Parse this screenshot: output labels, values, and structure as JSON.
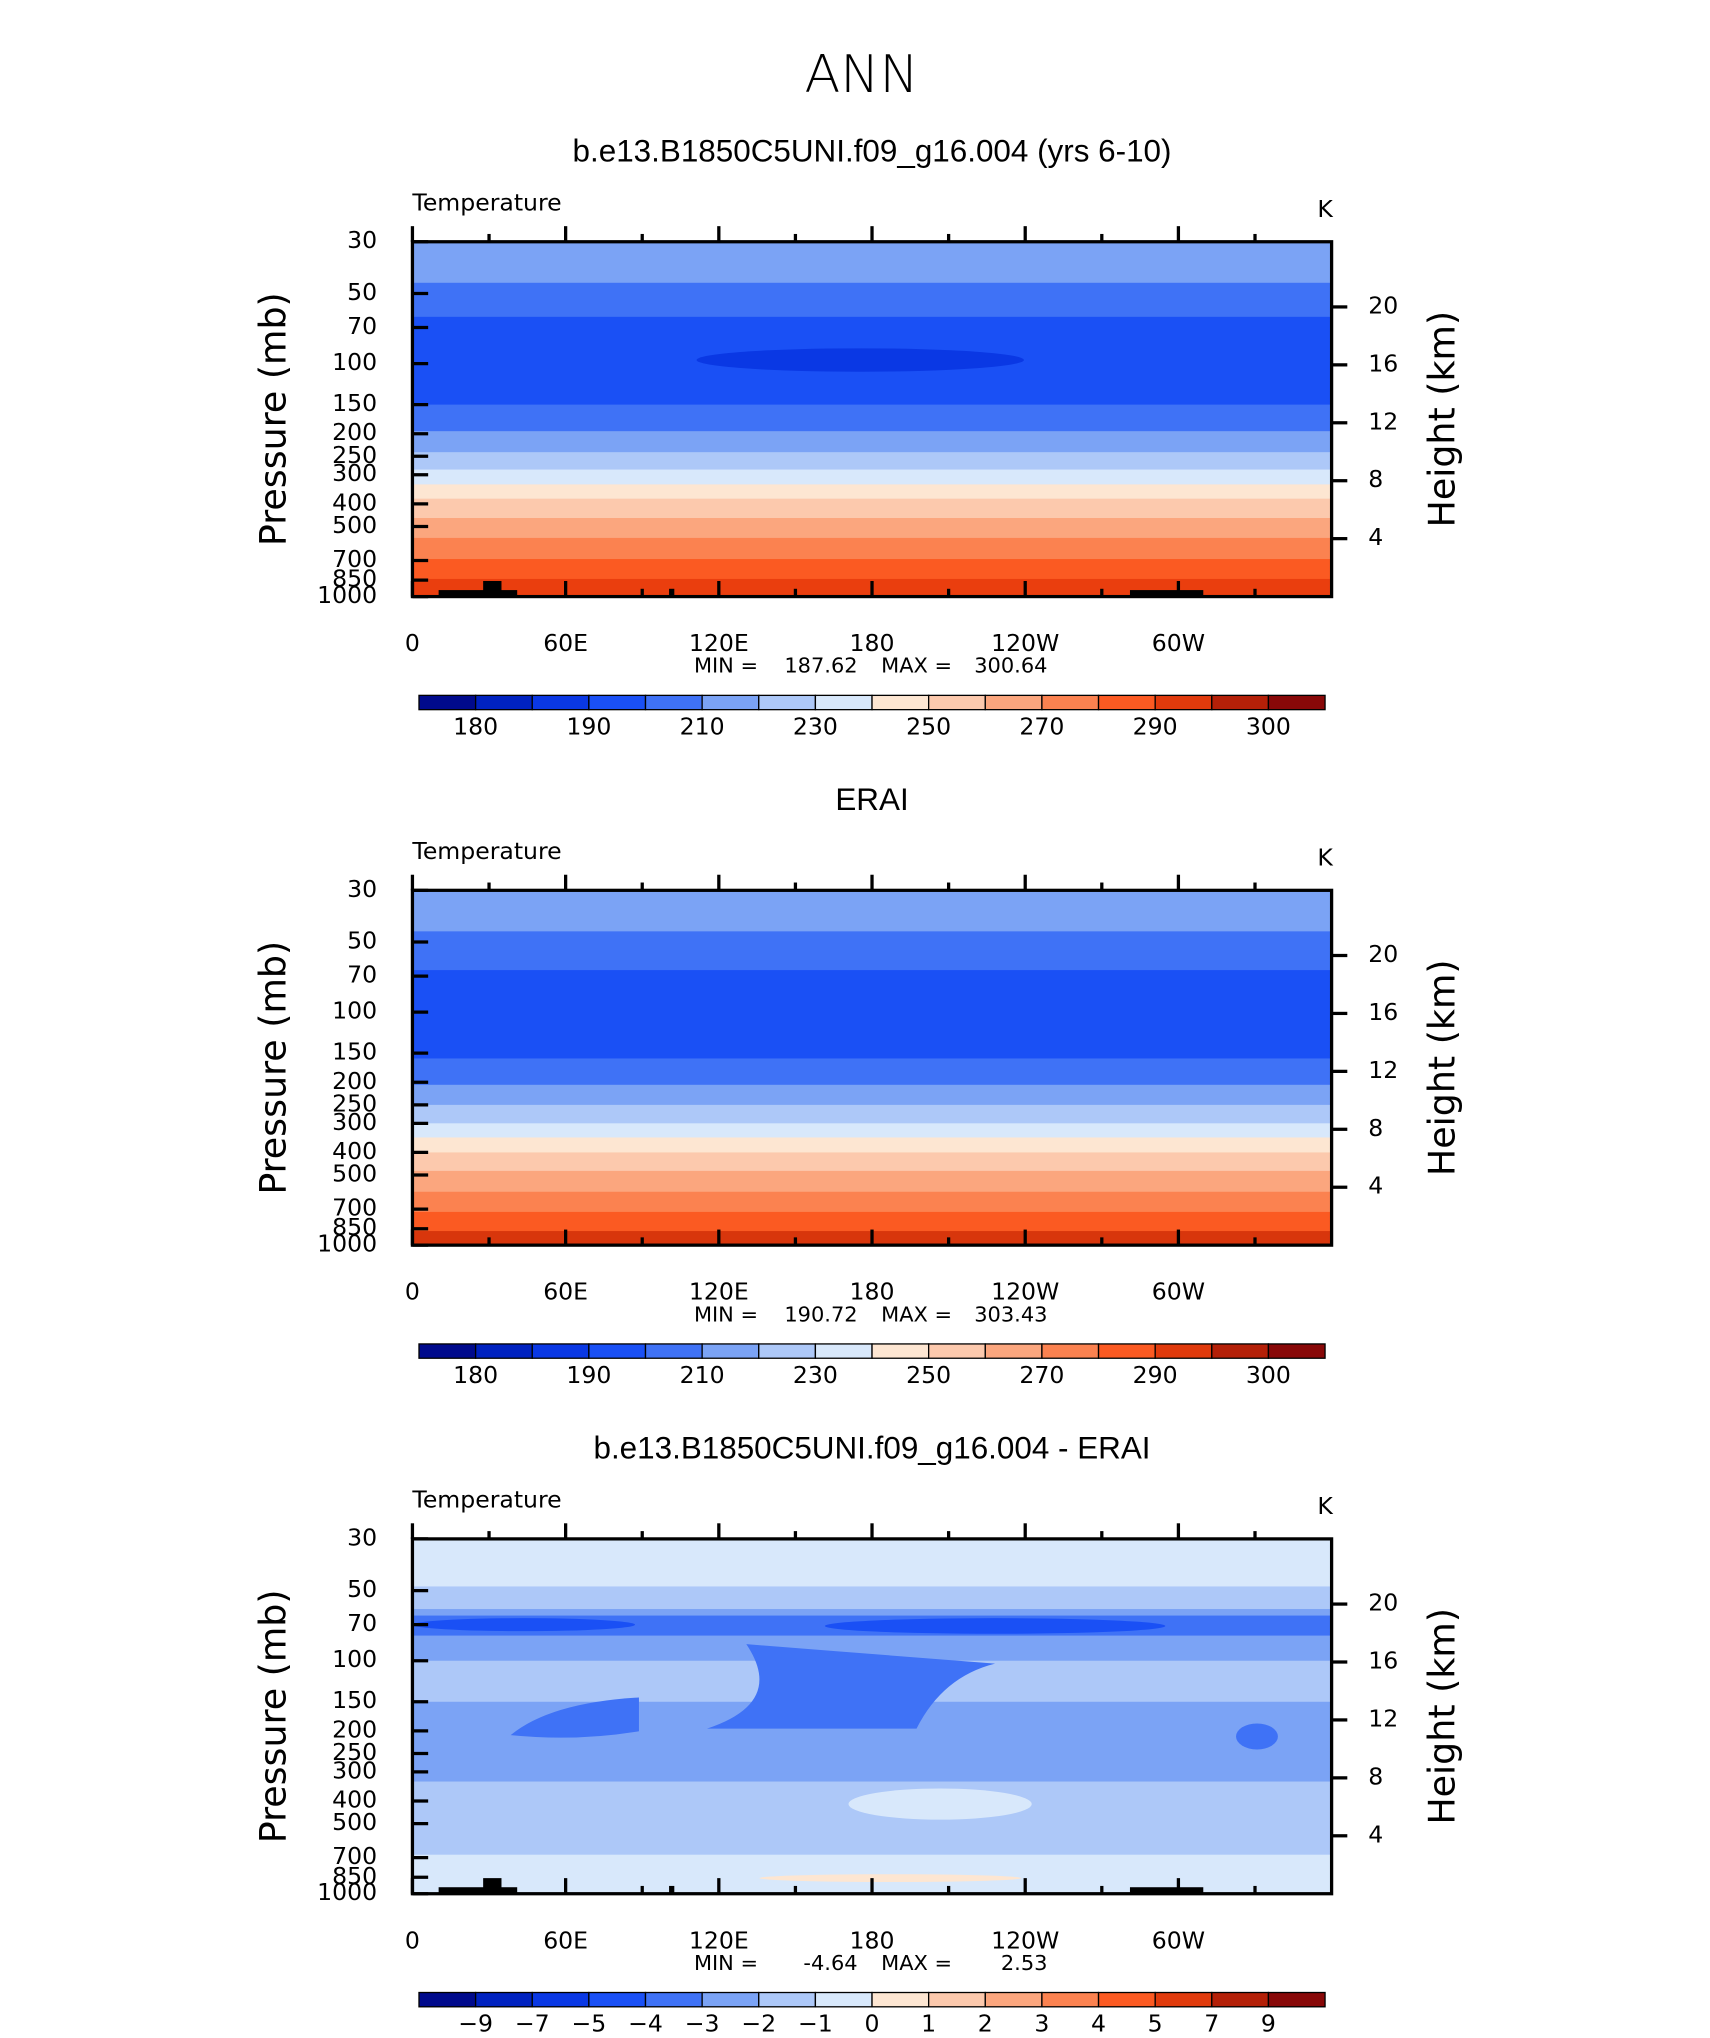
{
  "title": "ANN",
  "chart_data": [
    {
      "type": "contour",
      "title": "b.e13.B1850C5UNI.f09_g16.004 (yrs 6-10)",
      "left_label": "Temperature",
      "units": "K",
      "ylabel": "Pressure (mb)",
      "y2label": "Height (km)",
      "ylog": true,
      "ylim": [
        30,
        1000
      ],
      "yticks": [
        30,
        50,
        70,
        100,
        150,
        200,
        250,
        300,
        400,
        500,
        700,
        850,
        1000
      ],
      "y2lim": [
        0,
        24.5
      ],
      "y2ticks": [
        4,
        8,
        12,
        16,
        20
      ],
      "xlim": [
        0,
        360
      ],
      "xticks": [
        0,
        {
          "value": 60,
          "label": "60E"
        },
        {
          "value": 120,
          "label": "120E"
        },
        180,
        {
          "value": 240,
          "label": "120W"
        },
        {
          "value": 300,
          "label": "60W"
        }
      ],
      "xminorticks": [
        30,
        90,
        150,
        210,
        270,
        330
      ],
      "min_label": "MIN =",
      "min": 187.62,
      "max_label": "MAX =",
      "max": 300.64,
      "bands": [
        {
          "p": [
            30,
            45
          ],
          "color": "#7ba3f5"
        },
        {
          "p": [
            45,
            63
          ],
          "color": "#3f72f6"
        },
        {
          "p": [
            63,
            150
          ],
          "color": "#1a50f5"
        },
        {
          "p": [
            150,
            195
          ],
          "color": "#3f72f6"
        },
        {
          "p": [
            195,
            240
          ],
          "color": "#7ba3f5"
        },
        {
          "p": [
            240,
            285
          ],
          "color": "#adc8f8"
        },
        {
          "p": [
            285,
            330
          ],
          "color": "#d8e8fb"
        },
        {
          "p": [
            330,
            380
          ],
          "color": "#fde6d2"
        },
        {
          "p": [
            380,
            460
          ],
          "color": "#fcc9ad"
        },
        {
          "p": [
            460,
            560
          ],
          "color": "#fba67e"
        },
        {
          "p": [
            560,
            690
          ],
          "color": "#fb8250"
        },
        {
          "p": [
            690,
            840
          ],
          "color": "#fb5a22"
        },
        {
          "p": [
            840,
            1000
          ],
          "color": "#ea3e0e"
        }
      ],
      "colorbar": {
        "colors": [
          "#000a8c",
          "#0022c0",
          "#0a38e4",
          "#1a50f5",
          "#3f72f6",
          "#7ba3f5",
          "#adc8f8",
          "#d8e8fb",
          "#fde6d2",
          "#fcc9ad",
          "#fba67e",
          "#fb8250",
          "#fb5a22",
          "#e03a0c",
          "#b42008",
          "#880808"
        ],
        "labels": [
          180,
          190,
          210,
          230,
          250,
          270,
          290,
          300
        ]
      }
    },
    {
      "type": "contour",
      "title": "ERAI",
      "left_label": "Temperature",
      "units": "K",
      "ylabel": "Pressure (mb)",
      "y2label": "Height (km)",
      "ylog": true,
      "ylim": [
        30,
        1000
      ],
      "yticks": [
        30,
        50,
        70,
        100,
        150,
        200,
        250,
        300,
        400,
        500,
        700,
        850,
        1000
      ],
      "y2lim": [
        0,
        24.5
      ],
      "y2ticks": [
        4,
        8,
        12,
        16,
        20
      ],
      "xlim": [
        0,
        360
      ],
      "xticks": [
        0,
        {
          "value": 60,
          "label": "60E"
        },
        {
          "value": 120,
          "label": "120E"
        },
        180,
        {
          "value": 240,
          "label": "120W"
        },
        {
          "value": 300,
          "label": "60W"
        }
      ],
      "xminorticks": [
        30,
        90,
        150,
        210,
        270,
        330
      ],
      "min_label": "MIN =",
      "min": 190.72,
      "max_label": "MAX =",
      "max": 303.43,
      "bands": [
        {
          "p": [
            30,
            45
          ],
          "color": "#7ba3f5"
        },
        {
          "p": [
            45,
            66
          ],
          "color": "#3f72f6"
        },
        {
          "p": [
            66,
            158
          ],
          "color": "#1a50f5"
        },
        {
          "p": [
            158,
            205
          ],
          "color": "#3f72f6"
        },
        {
          "p": [
            205,
            250
          ],
          "color": "#7ba3f5"
        },
        {
          "p": [
            250,
            300
          ],
          "color": "#adc8f8"
        },
        {
          "p": [
            300,
            345
          ],
          "color": "#d8e8fb"
        },
        {
          "p": [
            345,
            400
          ],
          "color": "#fde6d2"
        },
        {
          "p": [
            400,
            480
          ],
          "color": "#fcc9ad"
        },
        {
          "p": [
            480,
            590
          ],
          "color": "#fba67e"
        },
        {
          "p": [
            590,
            720
          ],
          "color": "#fb8250"
        },
        {
          "p": [
            720,
            870
          ],
          "color": "#fb5a22"
        },
        {
          "p": [
            870,
            1000
          ],
          "color": "#d8360c"
        }
      ],
      "colorbar": {
        "colors": [
          "#000a8c",
          "#0022c0",
          "#0a38e4",
          "#1a50f5",
          "#3f72f6",
          "#7ba3f5",
          "#adc8f8",
          "#d8e8fb",
          "#fde6d2",
          "#fcc9ad",
          "#fba67e",
          "#fb8250",
          "#fb5a22",
          "#e03a0c",
          "#b42008",
          "#880808"
        ],
        "labels": [
          180,
          190,
          210,
          230,
          250,
          270,
          290,
          300
        ]
      }
    },
    {
      "type": "contour",
      "title": "b.e13.B1850C5UNI.f09_g16.004 - ERAI",
      "left_label": "Temperature",
      "units": "K",
      "ylabel": "Pressure (mb)",
      "y2label": "Height (km)",
      "ylog": true,
      "ylim": [
        30,
        1000
      ],
      "yticks": [
        30,
        50,
        70,
        100,
        150,
        200,
        250,
        300,
        400,
        500,
        700,
        850,
        1000
      ],
      "y2lim": [
        0,
        24.5
      ],
      "y2ticks": [
        4,
        8,
        12,
        16,
        20
      ],
      "xlim": [
        0,
        360
      ],
      "xticks": [
        0,
        {
          "value": 60,
          "label": "60E"
        },
        {
          "value": 120,
          "label": "120E"
        },
        180,
        {
          "value": 240,
          "label": "120W"
        },
        {
          "value": 300,
          "label": "60W"
        }
      ],
      "xminorticks": [
        30,
        90,
        150,
        210,
        270,
        330
      ],
      "min_label": "MIN =",
      "min": -4.64,
      "max_label": "MAX =",
      "max": 2.53,
      "bands": [
        {
          "p": [
            30,
            48
          ],
          "color": "#d8e8fb"
        },
        {
          "p": [
            48,
            60
          ],
          "color": "#adc8f8"
        },
        {
          "p": [
            60,
            64
          ],
          "color": "#7ba3f5"
        },
        {
          "p": [
            64,
            78
          ],
          "color": "#3f72f6"
        },
        {
          "p": [
            78,
            100
          ],
          "color": "#7ba3f5"
        },
        {
          "p": [
            100,
            150
          ],
          "color": "#adc8f8"
        },
        {
          "p": [
            150,
            330
          ],
          "color": "#7ba3f5"
        },
        {
          "p": [
            330,
            680
          ],
          "color": "#adc8f8"
        },
        {
          "p": [
            680,
            1000
          ],
          "color": "#d8e8fb"
        }
      ],
      "colorbar": {
        "colors": [
          "#000a8c",
          "#0022c0",
          "#0a38e4",
          "#1a50f5",
          "#3f72f6",
          "#7ba3f5",
          "#adc8f8",
          "#d8e8fb",
          "#fde6d2",
          "#fcc9ad",
          "#fba67e",
          "#fb8250",
          "#fb5a22",
          "#e03a0c",
          "#b42008",
          "#880808"
        ],
        "labels": [
          {
            "value": -9,
            "label": "−9"
          },
          {
            "value": -7,
            "label": "−7"
          },
          {
            "value": -5,
            "label": "−5"
          },
          {
            "value": -4,
            "label": "−4"
          },
          {
            "value": -3,
            "label": "−3"
          },
          {
            "value": -2,
            "label": "−2"
          },
          {
            "value": -1,
            "label": "−1"
          },
          0,
          1,
          2,
          3,
          4,
          5,
          7,
          9
        ]
      }
    }
  ]
}
